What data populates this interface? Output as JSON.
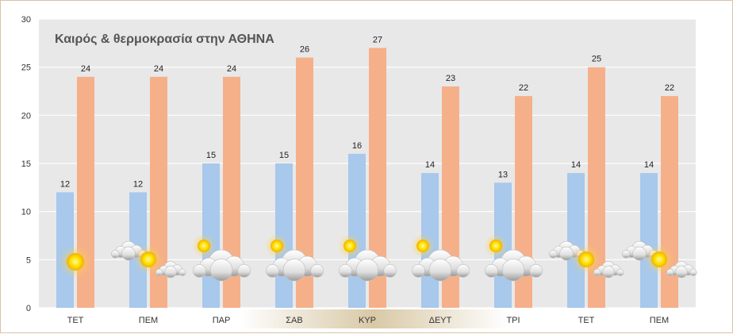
{
  "chart_data": {
    "type": "bar",
    "title": "Καιρός & θερμοκρασία στην ΑΘΗΝΑ",
    "categories": [
      "ΤΕΤ",
      "ΠΕΜ",
      "ΠΑΡ",
      "ΣΑΒ",
      "ΚΥΡ",
      "ΔΕΥΤ",
      "ΤΡΙ",
      "ΤΕΤ",
      "ΠΕΜ"
    ],
    "series": [
      {
        "values": [
          12,
          12,
          15,
          15,
          16,
          14,
          13,
          14,
          14
        ],
        "color": "#a8c8ec"
      },
      {
        "values": [
          24,
          24,
          24,
          26,
          27,
          23,
          22,
          25,
          22
        ],
        "color": "#f5b08a"
      }
    ],
    "ylim": [
      0,
      30
    ],
    "yticks": [
      0,
      5,
      10,
      15,
      20,
      25,
      30
    ],
    "grid": true,
    "weather_icons": [
      "sunny",
      "partly-cloudy",
      "mostly-cloudy",
      "mostly-cloudy",
      "mostly-cloudy",
      "mostly-cloudy",
      "mostly-cloudy",
      "partly-cloudy",
      "partly-cloudy"
    ],
    "plot_background": "#e8e8e8"
  }
}
